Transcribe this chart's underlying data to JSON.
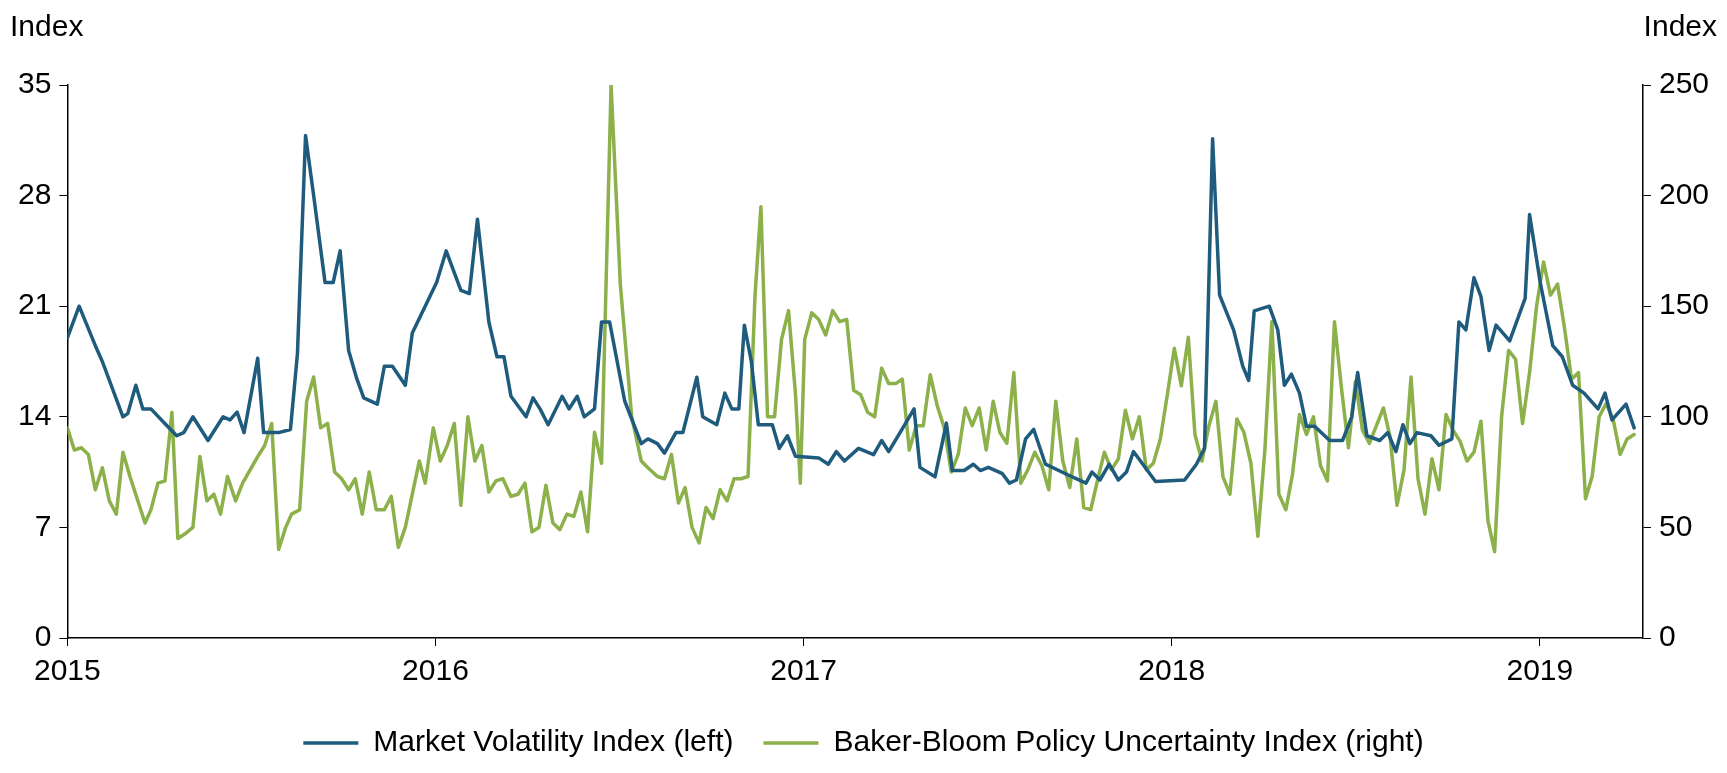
{
  "chart_data": {
    "type": "line",
    "ylabel": "Index",
    "y2label": "Index",
    "xlim": [
      2015,
      2019.28
    ],
    "xticks": [
      2015,
      2016,
      2017,
      2018,
      2019
    ],
    "ylim": [
      0,
      35
    ],
    "yticks": [
      0,
      7,
      14,
      21,
      28,
      35
    ],
    "y2lim": [
      0,
      250
    ],
    "y2ticks": [
      0,
      50,
      100,
      150,
      200,
      250
    ],
    "grid": false,
    "legend": "bottom",
    "marker": "none",
    "line_style": "solid",
    "series": [
      {
        "name": "Market Volatility Index (left)",
        "color": "#1f5b7c",
        "axis": "y",
        "x": [
          2015.0,
          2015.032,
          2015.076,
          2015.095,
          2015.151,
          2015.164,
          2015.186,
          2015.205,
          2015.227,
          2015.268,
          2015.297,
          2015.316,
          2015.341,
          2015.382,
          2015.423,
          2015.442,
          2015.461,
          2015.48,
          2015.517,
          2015.533,
          2015.574,
          2015.606,
          2015.625,
          2015.647,
          2015.669,
          2015.7,
          2015.722,
          2015.741,
          2015.764,
          2015.785,
          2015.805,
          2015.842,
          2015.861,
          2015.883,
          2015.918,
          2015.937,
          2016.003,
          2016.029,
          2016.069,
          2016.092,
          2016.114,
          2016.145,
          2016.167,
          2016.186,
          2016.205,
          2016.246,
          2016.265,
          2016.284,
          2016.306,
          2016.344,
          2016.363,
          2016.385,
          2016.404,
          2016.432,
          2016.451,
          2016.473,
          2016.514,
          2016.559,
          2016.577,
          2016.603,
          2016.622,
          2016.653,
          2016.672,
          2016.71,
          2016.726,
          2016.764,
          2016.786,
          2016.805,
          2016.824,
          2016.839,
          2016.858,
          2016.877,
          2016.915,
          2016.934,
          2016.956,
          2016.978,
          2017.041,
          2017.067,
          2017.089,
          2017.111,
          2017.149,
          2017.19,
          2017.212,
          2017.231,
          2017.272,
          2017.3,
          2017.316,
          2017.357,
          2017.388,
          2017.404,
          2017.436,
          2017.461,
          2017.48,
          2017.502,
          2017.54,
          2017.559,
          2017.578,
          2017.603,
          2017.625,
          2017.657,
          2017.72,
          2017.767,
          2017.783,
          2017.805,
          2017.83,
          2017.855,
          2017.877,
          2017.896,
          2017.934,
          2017.956,
          2018.035,
          2018.067,
          2018.089,
          2018.111,
          2018.13,
          2018.168,
          2018.193,
          2018.209,
          2018.224,
          2018.265,
          2018.288,
          2018.306,
          2018.325,
          2018.347,
          2018.366,
          2018.388,
          2018.429,
          2018.464,
          2018.489,
          2018.505,
          2018.53,
          2018.565,
          2018.587,
          2018.609,
          2018.628,
          2018.647,
          2018.666,
          2018.704,
          2018.726,
          2018.761,
          2018.78,
          2018.799,
          2018.821,
          2018.84,
          2018.862,
          2018.881,
          2018.918,
          2018.96,
          2018.972,
          2019.001,
          2019.035,
          2019.061,
          2019.089,
          2019.12,
          2019.158,
          2019.177,
          2019.196,
          2019.234,
          2019.256
        ],
        "values": [
          19,
          21,
          18.5,
          17.5,
          14,
          14.2,
          16,
          14.5,
          14.5,
          13.5,
          12.8,
          13,
          14,
          12.5,
          14,
          13.8,
          14.3,
          13,
          17.7,
          13,
          13,
          13.2,
          18,
          31.8,
          28,
          22.5,
          22.5,
          24.5,
          18.2,
          16.5,
          15.2,
          14.8,
          17.2,
          17.2,
          16,
          19.3,
          22.5,
          24.5,
          22,
          21.8,
          26.5,
          20,
          17.8,
          17.8,
          15.3,
          14,
          15.2,
          14.5,
          13.5,
          15.3,
          14.5,
          15.3,
          14,
          14.5,
          20,
          20,
          15,
          12.3,
          12.6,
          12.3,
          11.7,
          13,
          13,
          16.5,
          14,
          13.5,
          15.5,
          14.5,
          14.5,
          19.8,
          17.5,
          13.5,
          13.5,
          12,
          12.8,
          11.5,
          11.4,
          11,
          11.8,
          11.2,
          12,
          11.6,
          12.5,
          11.8,
          13.4,
          14.5,
          10.8,
          10.2,
          13.6,
          10.6,
          10.6,
          11,
          10.6,
          10.8,
          10.4,
          9.8,
          10,
          12.6,
          13.2,
          11,
          10.3,
          9.8,
          10.5,
          10,
          11,
          10,
          10.5,
          11.8,
          10.6,
          9.9,
          10,
          11,
          12,
          31.6,
          21.7,
          19.5,
          17.2,
          16.3,
          20.7,
          21,
          19.5,
          16,
          16.7,
          15.5,
          13.4,
          13.4,
          12.5,
          12.5,
          14,
          16.8,
          12.8,
          12.5,
          13,
          11.8,
          13.5,
          12.3,
          13,
          12.8,
          12.2,
          12.6,
          20,
          19.5,
          22.8,
          21.6,
          18.2,
          19.8,
          18.8,
          21.5,
          26.8,
          22.5,
          18.5,
          17.8,
          16,
          15.5,
          14.5,
          15.5,
          13.8,
          14.8,
          13.3
        ]
      },
      {
        "name": "Baker-Bloom Policy Uncertainty Index (right)",
        "color": "#8cb04a",
        "axis": "y2",
        "x": [
          2015.0,
          2015.019,
          2015.038,
          2015.057,
          2015.076,
          2015.095,
          2015.114,
          2015.133,
          2015.151,
          2015.17,
          2015.211,
          2015.227,
          2015.246,
          2015.265,
          2015.284,
          2015.3,
          2015.319,
          2015.341,
          2015.36,
          2015.379,
          2015.398,
          2015.416,
          2015.435,
          2015.457,
          2015.476,
          2015.517,
          2015.536,
          2015.555,
          2015.574,
          2015.593,
          2015.609,
          2015.631,
          2015.65,
          2015.669,
          2015.688,
          2015.707,
          2015.726,
          2015.745,
          2015.764,
          2015.782,
          2015.801,
          2015.82,
          2015.839,
          2015.861,
          2015.88,
          2015.899,
          2015.918,
          2015.937,
          2015.956,
          2015.972,
          2015.994,
          2016.013,
          2016.032,
          2016.051,
          2016.069,
          2016.088,
          2016.107,
          2016.126,
          2016.145,
          2016.164,
          2016.183,
          2016.205,
          2016.224,
          2016.243,
          2016.262,
          2016.281,
          2016.3,
          2016.319,
          2016.338,
          2016.357,
          2016.376,
          2016.395,
          2016.413,
          2016.432,
          2016.451,
          2016.477,
          2016.502,
          2016.533,
          2016.559,
          2016.577,
          2016.603,
          2016.622,
          2016.641,
          2016.66,
          2016.678,
          2016.697,
          2016.716,
          2016.735,
          2016.754,
          2016.773,
          2016.792,
          2016.811,
          2016.83,
          2016.849,
          2016.868,
          2016.884,
          2016.902,
          2016.921,
          2016.94,
          2016.959,
          2016.978,
          2016.991,
          2017.003,
          2017.022,
          2017.041,
          2017.06,
          2017.079,
          2017.098,
          2017.117,
          2017.136,
          2017.155,
          2017.174,
          2017.193,
          2017.212,
          2017.231,
          2017.25,
          2017.268,
          2017.287,
          2017.306,
          2017.325,
          2017.344,
          2017.363,
          2017.382,
          2017.401,
          2017.42,
          2017.439,
          2017.458,
          2017.477,
          2017.496,
          2017.515,
          2017.533,
          2017.552,
          2017.571,
          2017.59,
          2017.609,
          2017.628,
          2017.647,
          2017.666,
          2017.685,
          2017.704,
          2017.723,
          2017.742,
          2017.761,
          2017.78,
          2017.798,
          2017.817,
          2017.836,
          2017.855,
          2017.874,
          2017.893,
          2017.912,
          2017.931,
          2017.95,
          2017.969,
          2017.988,
          2018.007,
          2018.026,
          2018.045,
          2018.063,
          2018.082,
          2018.101,
          2018.12,
          2018.139,
          2018.158,
          2018.177,
          2018.196,
          2018.215,
          2018.234,
          2018.253,
          2018.272,
          2018.291,
          2018.31,
          2018.328,
          2018.347,
          2018.366,
          2018.385,
          2018.404,
          2018.423,
          2018.442,
          2018.461,
          2018.48,
          2018.499,
          2018.518,
          2018.537,
          2018.556,
          2018.575,
          2018.593,
          2018.612,
          2018.631,
          2018.65,
          2018.669,
          2018.688,
          2018.707,
          2018.726,
          2018.745,
          2018.764,
          2018.783,
          2018.802,
          2018.821,
          2018.84,
          2018.859,
          2018.877,
          2018.896,
          2018.915,
          2018.934,
          2018.953,
          2018.972,
          2018.991,
          2019.01,
          2019.029,
          2019.048,
          2019.067,
          2019.086,
          2019.105,
          2019.124,
          2019.142,
          2019.161,
          2019.18,
          2019.199,
          2019.218,
          2019.237,
          2019.256
        ],
        "values": [
          95,
          85,
          86,
          83,
          67,
          77,
          62,
          56,
          84,
          73,
          52,
          58,
          70,
          71,
          102,
          45,
          47,
          50,
          82,
          62,
          65,
          56,
          73,
          62,
          70,
          82,
          87,
          97,
          40,
          50,
          56,
          58,
          107,
          118,
          95,
          97,
          75,
          72,
          67,
          72,
          56,
          75,
          58,
          58,
          64,
          41,
          50,
          65,
          80,
          70,
          95,
          80,
          87,
          97,
          60,
          100,
          80,
          87,
          66,
          71,
          72,
          64,
          65,
          70,
          48,
          50,
          69,
          52,
          49,
          56,
          55,
          66,
          48,
          93,
          79,
          250,
          160,
          100,
          80,
          77,
          73,
          72,
          83,
          61,
          68,
          50,
          43,
          59,
          54,
          67,
          62,
          72,
          72,
          73,
          155,
          195,
          100,
          100,
          135,
          148,
          110,
          70,
          135,
          147,
          144,
          137,
          148,
          143,
          144,
          112,
          110,
          102,
          100,
          122,
          115,
          115,
          117,
          85,
          96,
          96,
          119,
          105,
          95,
          75,
          83,
          104,
          96,
          104,
          85,
          107,
          93,
          88,
          120,
          70,
          76,
          84,
          78,
          67,
          107,
          80,
          68,
          90,
          59,
          58,
          71,
          84,
          76,
          81,
          103,
          90,
          100,
          76,
          79,
          90,
          110,
          131,
          114,
          136,
          92,
          80,
          96,
          107,
          73,
          65,
          99,
          93,
          79,
          46,
          85,
          143,
          65,
          58,
          74,
          101,
          92,
          100,
          78,
          71,
          143,
          113,
          86,
          116,
          94,
          88,
          96,
          104,
          91,
          60,
          76,
          118,
          72,
          56,
          81,
          67,
          101,
          94,
          89,
          80,
          84,
          98,
          53,
          39,
          100,
          130,
          126,
          97,
          120,
          150,
          170,
          155,
          160,
          140,
          117,
          120,
          63,
          73,
          100,
          106,
          99,
          83,
          90,
          92
        ]
      }
    ]
  }
}
